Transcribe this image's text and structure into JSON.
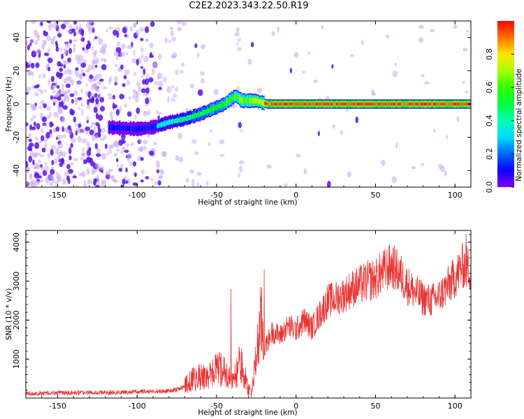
{
  "page_title": "C2E2.2023.343.22.50.R19",
  "chart_data": [
    {
      "type": "heatmap",
      "title": "",
      "xlabel": "Height of straight line (km)",
      "ylabel": "Frequency (Hz)",
      "xlim": [
        -170,
        110
      ],
      "ylim": [
        -50,
        50
      ],
      "xticks": [
        -150,
        -100,
        -50,
        0,
        50,
        100
      ],
      "yticks": [
        -40,
        -20,
        0,
        20,
        40
      ],
      "colorbar": {
        "label": "Normalized spectral amplitude",
        "range": [
          0,
          1
        ],
        "ticks": [
          "0.0",
          "0.2",
          "0.4",
          "0.6",
          "0.8"
        ]
      },
      "ridge": [
        {
          "x": -118,
          "y": -14
        },
        {
          "x": -100,
          "y": -15
        },
        {
          "x": -90,
          "y": -14
        },
        {
          "x": -80,
          "y": -11
        },
        {
          "x": -70,
          "y": -9
        },
        {
          "x": -60,
          "y": -6
        },
        {
          "x": -55,
          "y": -4
        },
        {
          "x": -45,
          "y": 0
        },
        {
          "x": -38,
          "y": 5
        },
        {
          "x": -34,
          "y": 2
        },
        {
          "x": -25,
          "y": 2
        },
        {
          "x": -18,
          "y": 0
        },
        {
          "x": 0,
          "y": 0
        },
        {
          "x": 110,
          "y": 0
        }
      ]
    },
    {
      "type": "line",
      "title": "",
      "xlabel": "Height of straight line (km)",
      "ylabel": "SNR (10 * v/v)",
      "xlim": [
        -170,
        110
      ],
      "ylim": [
        0,
        4300
      ],
      "xticks": [
        -150,
        -100,
        -50,
        0,
        50,
        100
      ],
      "yticks": [
        1000,
        2000,
        3000,
        4000
      ],
      "color": "#e83535",
      "series": [
        {
          "name": "",
          "x": [
            -170,
            -160,
            -150,
            -140,
            -130,
            -120,
            -110,
            -100,
            -90,
            -80,
            -75,
            -70,
            -65,
            -60,
            -55,
            -50,
            -45,
            -40,
            -35,
            -30,
            -28,
            -25,
            -22,
            -20,
            -15,
            -10,
            -5,
            0,
            5,
            10,
            15,
            20,
            25,
            30,
            35,
            40,
            45,
            50,
            55,
            60,
            65,
            70,
            75,
            80,
            85,
            90,
            95,
            100,
            105,
            110
          ],
          "y": [
            120,
            120,
            130,
            130,
            140,
            140,
            150,
            160,
            170,
            180,
            220,
            300,
            480,
            550,
            520,
            750,
            700,
            380,
            900,
            250,
            120,
            1050,
            2000,
            1250,
            1700,
            1600,
            1850,
            1750,
            2000,
            1800,
            2150,
            2500,
            2550,
            2650,
            2800,
            2900,
            3000,
            3050,
            3250,
            3400,
            3200,
            2900,
            2700,
            2550,
            2500,
            2600,
            2850,
            3100,
            3400,
            3300
          ]
        }
      ],
      "spikes": [
        {
          "x": -41,
          "y": 2800
        },
        {
          "x": -20,
          "y": 3300
        },
        {
          "x": 107,
          "y": 4200
        }
      ]
    }
  ]
}
